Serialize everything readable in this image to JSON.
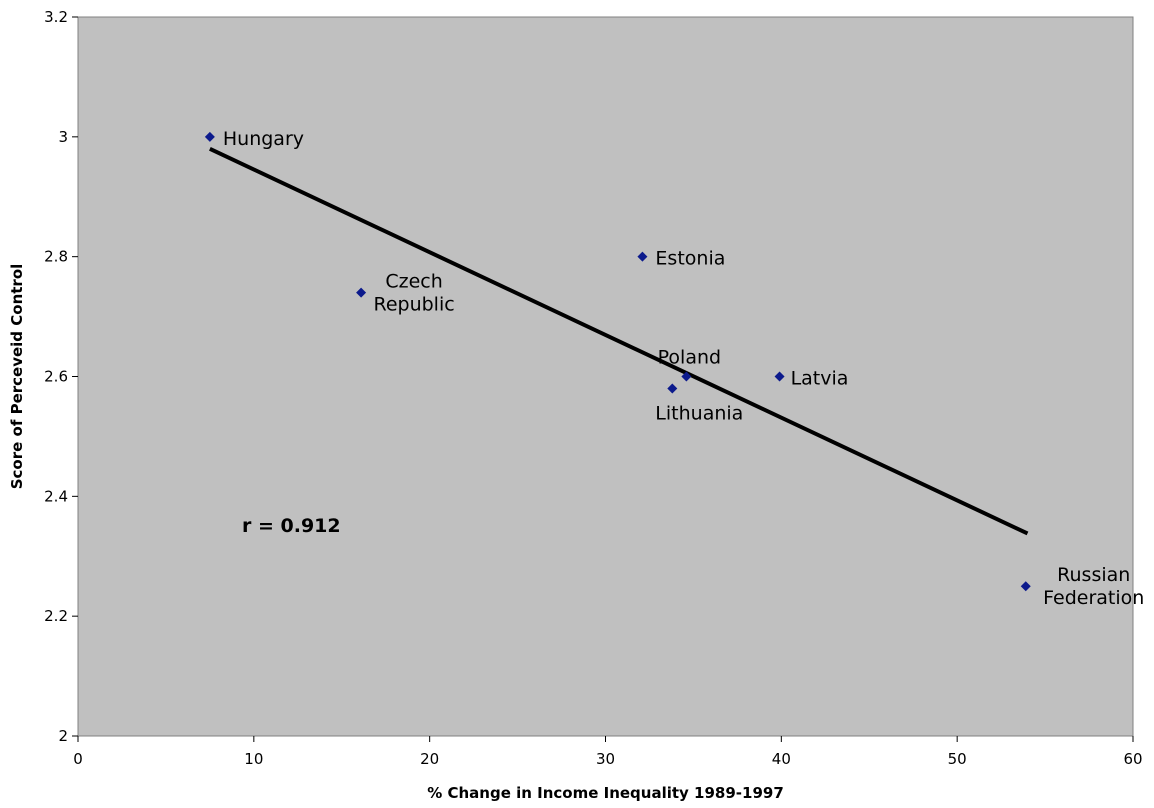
{
  "chart_data": {
    "type": "scatter",
    "title": "",
    "xlabel": "% Change in Income Inequality 1989-1997",
    "ylabel": "Score of Perceveid Control",
    "xlim": [
      0,
      60
    ],
    "ylim": [
      2,
      3.2
    ],
    "xticks": [
      0,
      10,
      20,
      30,
      40,
      50,
      60
    ],
    "yticks": [
      2,
      2.2,
      2.4,
      2.6,
      2.8,
      3,
      3.2
    ],
    "grid": false,
    "legend": "none",
    "colors": {
      "plot_bg": "#c0c0c0",
      "marker": "#0c1a8c",
      "trend": "#000000"
    },
    "points": [
      {
        "label": [
          "Hungary"
        ],
        "x": 7.5,
        "y": 3.0
      },
      {
        "label": [
          "Czech",
          "Republic"
        ],
        "x": 16.1,
        "y": 2.74
      },
      {
        "label": [
          "Estonia"
        ],
        "x": 32.1,
        "y": 2.8
      },
      {
        "label": [
          "Poland"
        ],
        "x": 34.6,
        "y": 2.6
      },
      {
        "label": [
          "Lithuania"
        ],
        "x": 33.8,
        "y": 2.58
      },
      {
        "label": [
          "Latvia"
        ],
        "x": 39.9,
        "y": 2.6
      },
      {
        "label": [
          "Russian",
          "Federation"
        ],
        "x": 53.9,
        "y": 2.25
      }
    ],
    "trendline": {
      "x": [
        7.5,
        54
      ],
      "y": [
        2.98,
        2.338
      ]
    },
    "annotation": "r = 0.912"
  }
}
